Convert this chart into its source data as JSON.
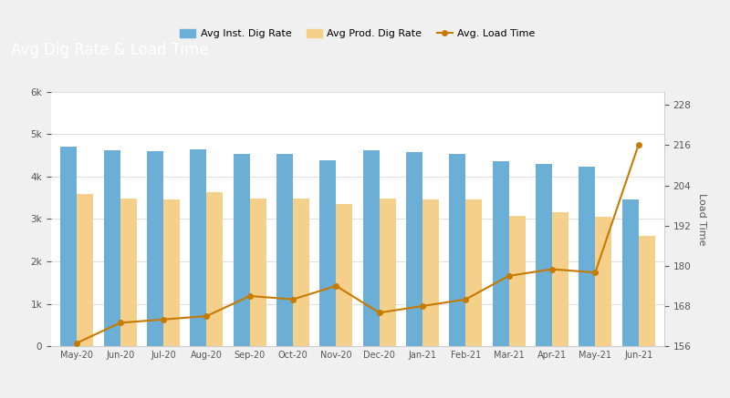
{
  "categories": [
    "May-20",
    "Jun-20",
    "Jul-20",
    "Aug-20",
    "Sep-20",
    "Oct-20",
    "Nov-20",
    "Dec-20",
    "Jan-21",
    "Feb-21",
    "Mar-21",
    "Apr-21",
    "May-21",
    "Jun-21"
  ],
  "avg_inst_dig_rate": [
    4700,
    4620,
    4600,
    4640,
    4520,
    4530,
    4380,
    4620,
    4580,
    4530,
    4350,
    4300,
    4220,
    3450
  ],
  "avg_prod_dig_rate": [
    3580,
    3480,
    3460,
    3620,
    3480,
    3480,
    3350,
    3480,
    3450,
    3460,
    3080,
    3150,
    3060,
    2600
  ],
  "avg_load_time": [
    157,
    163,
    164,
    165,
    171,
    170,
    174,
    166,
    168,
    170,
    177,
    179,
    178,
    216
  ],
  "bar_color_inst": "#6BAED6",
  "bar_color_prod": "#F5D08A",
  "line_color": "#C87A00",
  "title": "Avg Dig Rate & Load Time",
  "title_bg": "#5A6E7F",
  "title_color": "#FFFFFF",
  "chart_bg": "#FFFFFF",
  "outer_bg": "#F0F0F0",
  "ylabel_left": "",
  "ylabel_right": "Load Time",
  "ylim_left": [
    0,
    6000
  ],
  "ylim_right": [
    156,
    232
  ],
  "yticks_left": [
    0,
    1000,
    2000,
    3000,
    4000,
    5000,
    6000
  ],
  "yticks_right": [
    156,
    168,
    180,
    192,
    204,
    216,
    228
  ],
  "legend_labels": [
    "Avg Inst. Dig Rate",
    "Avg Prod. Dig Rate",
    "Avg. Load Time"
  ],
  "bar_width": 0.38,
  "grid_color": "#E0E0E0"
}
